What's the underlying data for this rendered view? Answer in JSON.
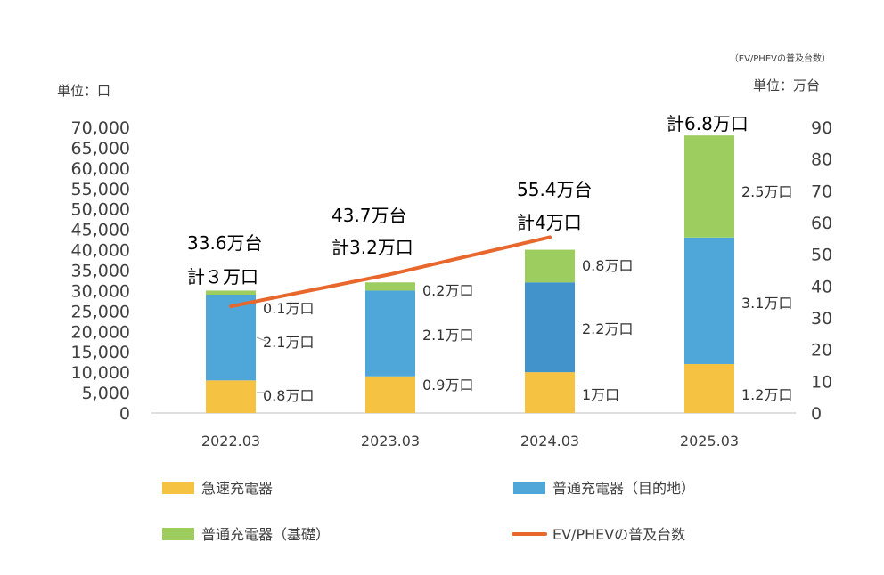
{
  "chart_data": {
    "type": "bar",
    "stacked": true,
    "note": "（EV/PHEVの普及台数）",
    "unit_left": "単位：口",
    "unit_right": "単位：万台",
    "categories": [
      "2022.03",
      "2023.03",
      "2024.03",
      "2025.03"
    ],
    "ylim_left": [
      0,
      70000
    ],
    "yticks_left": [
      "0",
      "5,000",
      "10,000",
      "15,000",
      "20,000",
      "25,000",
      "30,000",
      "35,000",
      "40,000",
      "45,000",
      "50,000",
      "55,000",
      "60,000",
      "65,000",
      "70,000"
    ],
    "ylim_right": [
      0,
      90
    ],
    "yticks_right": [
      "0",
      "10",
      "20",
      "30",
      "40",
      "50",
      "60",
      "70",
      "80",
      "90"
    ],
    "series": [
      {
        "name": "急速充電器",
        "color": "#F5C242",
        "values": [
          8000,
          9000,
          10000,
          12000
        ],
        "labels": [
          "0.8万口",
          "0.9万口",
          "1万口",
          "1.2万口"
        ]
      },
      {
        "name": "普通充電器（目的地）",
        "color": "#4EA6D9",
        "colors": [
          "#4EA6D9",
          "#4EA6D9",
          "#4292CC",
          "#4EA6D9"
        ],
        "values": [
          21000,
          21000,
          22000,
          31000
        ],
        "labels": [
          "2.1万口",
          "2.1万口",
          "2.2万口",
          "3.1万口"
        ]
      },
      {
        "name": "普通充電器（基礎）",
        "color": "#9DCC5F",
        "values": [
          1000,
          2000,
          8000,
          25000
        ],
        "labels": [
          "0.1万口",
          "0.2万口",
          "0.8万口",
          "2.5万口"
        ]
      }
    ],
    "line": {
      "name": "EV/PHEVの普及台数",
      "color": "#E8672D",
      "axis": "right",
      "values": [
        33.6,
        43.7,
        55.4
      ],
      "labels": [
        "33.6万台",
        "43.7万台",
        "55.4万台"
      ]
    },
    "totals": [
      "計３万口",
      "計3.2万口",
      "計4万口",
      "計6.8万口"
    ],
    "grid": false,
    "legend": "bottom"
  }
}
